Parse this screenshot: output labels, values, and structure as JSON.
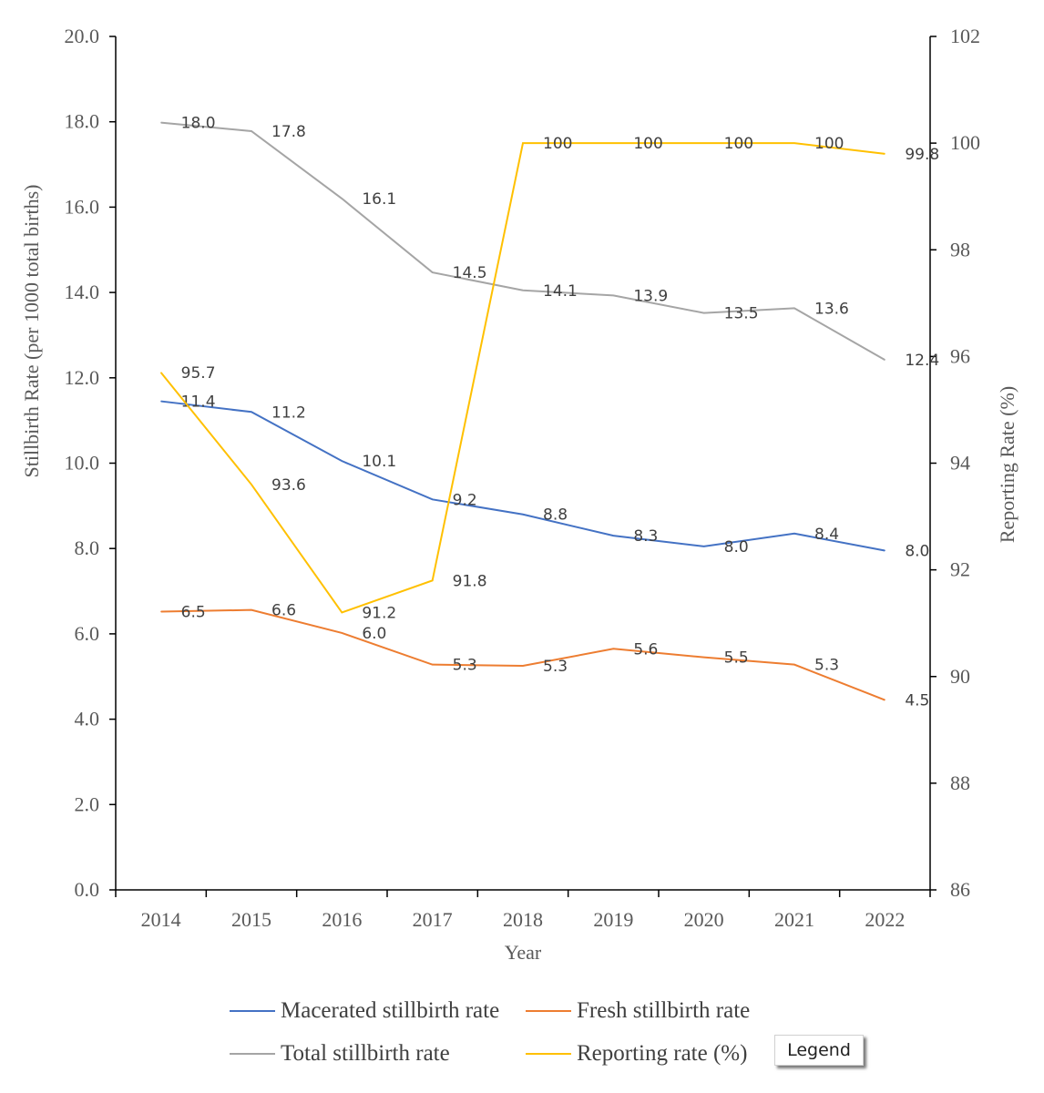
{
  "chart_data": {
    "type": "line",
    "x": [
      "2014",
      "2015",
      "2016",
      "2017",
      "2018",
      "2019",
      "2020",
      "2021",
      "2022"
    ],
    "xlabel": "Year",
    "ylabel": "Stillbirth Rate (per 1000 total births)",
    "y2label": "Reporting Rate (%)",
    "ylim": [
      0,
      20
    ],
    "y2lim": [
      86,
      102
    ],
    "yticks": [
      "0.0",
      "2.0",
      "4.0",
      "6.0",
      "8.0",
      "10.0",
      "12.0",
      "14.0",
      "16.0",
      "18.0",
      "20.0"
    ],
    "y2ticks": [
      "86",
      "88",
      "90",
      "92",
      "94",
      "96",
      "98",
      "100",
      "102"
    ],
    "grid": false,
    "legend_position": "bottom",
    "series": [
      {
        "name": "Macerated stillbirth rate",
        "axis": "left",
        "color": "#4472C4",
        "values": [
          11.4,
          11.2,
          10.1,
          9.2,
          8.8,
          8.3,
          8.0,
          8.4,
          8.0
        ],
        "labels": [
          "11.4",
          "11.2",
          "10.1",
          "9.2",
          "8.8",
          "8.3",
          "8.0",
          "8.4",
          "8.0"
        ],
        "plot": [
          11.45,
          11.2,
          10.05,
          9.15,
          8.8,
          8.3,
          8.05,
          8.35,
          7.95
        ]
      },
      {
        "name": "Fresh stillbirth rate",
        "axis": "left",
        "color": "#ED7D31",
        "values": [
          6.5,
          6.6,
          6.0,
          5.3,
          5.3,
          5.6,
          5.5,
          5.3,
          4.5
        ],
        "labels": [
          "6.5",
          "6.6",
          "6.0",
          "5.3",
          "5.3",
          "5.6",
          "5.5",
          "5.3",
          "4.5"
        ],
        "plot": [
          6.52,
          6.56,
          6.02,
          5.28,
          5.25,
          5.65,
          5.45,
          5.28,
          4.45
        ]
      },
      {
        "name": "Total stillbirth rate",
        "axis": "left",
        "color": "#A5A5A5",
        "values": [
          18.0,
          17.8,
          16.1,
          14.5,
          14.1,
          13.9,
          13.5,
          13.6,
          12.4
        ],
        "labels": [
          "18.0",
          "17.8",
          "16.1",
          "14.5",
          "14.1",
          "13.9",
          "13.5",
          "13.6",
          "12.4"
        ],
        "plot": [
          17.98,
          17.78,
          16.2,
          14.47,
          14.05,
          13.93,
          13.52,
          13.63,
          12.42
        ]
      },
      {
        "name": "Reporting rate (%)",
        "axis": "right",
        "color": "#FFC000",
        "values": [
          95.7,
          93.6,
          91.2,
          91.8,
          100,
          100,
          100,
          100,
          99.8
        ],
        "labels": [
          "95.7",
          "93.6",
          "91.2",
          "91.8",
          "100",
          "100",
          "100",
          "100",
          "99.8"
        ],
        "plot": [
          95.7,
          93.6,
          91.2,
          91.8,
          100,
          100,
          100,
          100,
          99.8
        ]
      }
    ]
  },
  "legend_button": "Legend"
}
